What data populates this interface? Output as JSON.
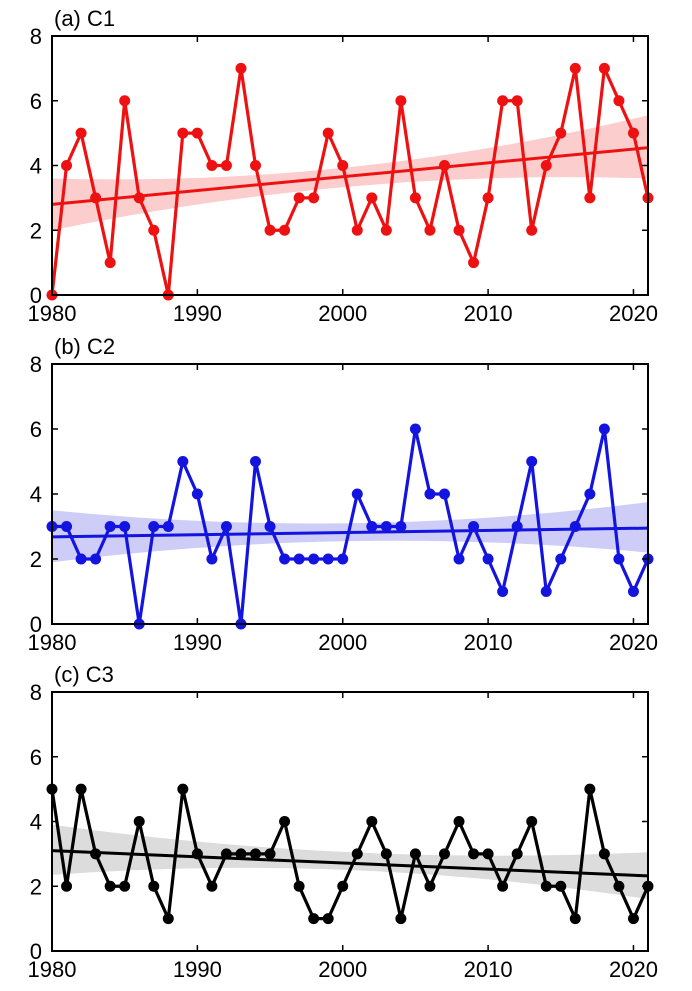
{
  "chart_data": [
    {
      "type": "line",
      "title": "(a) C1",
      "color": "#ee1111",
      "band_color": "#fbcdcd",
      "xlim": [
        1980,
        2021
      ],
      "ylim": [
        0,
        8
      ],
      "xticks": [
        1980,
        1990,
        2000,
        2010,
        2020
      ],
      "yticks": [
        0,
        2,
        4,
        6,
        8
      ],
      "x": [
        1980,
        1981,
        1982,
        1983,
        1984,
        1985,
        1986,
        1987,
        1988,
        1989,
        1990,
        1991,
        1992,
        1993,
        1994,
        1995,
        1996,
        1997,
        1998,
        1999,
        2000,
        2001,
        2002,
        2003,
        2004,
        2005,
        2006,
        2007,
        2008,
        2009,
        2010,
        2011,
        2012,
        2013,
        2014,
        2015,
        2016,
        2017,
        2018,
        2019,
        2020,
        2021
      ],
      "values": [
        0,
        4,
        5,
        3,
        1,
        6,
        3,
        2,
        0,
        5,
        5,
        4,
        4,
        7,
        4,
        2,
        2,
        3,
        3,
        5,
        4,
        2,
        3,
        2,
        6,
        3,
        2,
        4,
        2,
        1,
        3,
        6,
        6,
        2,
        4,
        5,
        7,
        3,
        7,
        6,
        5,
        3
      ],
      "trend": {
        "start": 2.8,
        "end": 4.55
      },
      "band": {
        "start_low": 2.0,
        "start_high": 3.6,
        "mid_low": 3.35,
        "mid_high": 3.95,
        "end_low": 3.6,
        "end_high": 5.55
      }
    },
    {
      "type": "line",
      "title": "(b) C2",
      "color": "#1414e0",
      "band_color": "#cdcdf8",
      "xlim": [
        1980,
        2021
      ],
      "ylim": [
        0,
        8
      ],
      "xticks": [
        1980,
        1990,
        2000,
        2010,
        2020
      ],
      "yticks": [
        0,
        2,
        4,
        6,
        8
      ],
      "x": [
        1980,
        1981,
        1982,
        1983,
        1984,
        1985,
        1986,
        1987,
        1988,
        1989,
        1990,
        1991,
        1992,
        1993,
        1994,
        1995,
        1996,
        1997,
        1998,
        1999,
        2000,
        2001,
        2002,
        2003,
        2004,
        2005,
        2006,
        2007,
        2008,
        2009,
        2010,
        2011,
        2012,
        2013,
        2014,
        2015,
        2016,
        2017,
        2018,
        2019,
        2020,
        2021
      ],
      "values": [
        3,
        3,
        2,
        2,
        3,
        3,
        0,
        3,
        3,
        5,
        4,
        2,
        3,
        0,
        5,
        3,
        2,
        2,
        2,
        2,
        2,
        4,
        3,
        3,
        3,
        6,
        4,
        4,
        2,
        3,
        2,
        1,
        3,
        5,
        1,
        2,
        3,
        4,
        6,
        2,
        1,
        2
      ],
      "trend": {
        "start": 2.68,
        "end": 2.95
      },
      "band": {
        "start_low": 1.9,
        "start_high": 3.5,
        "mid_low": 2.55,
        "mid_high": 3.1,
        "end_low": 2.2,
        "end_high": 3.75
      }
    },
    {
      "type": "line",
      "title": "(c) C3",
      "color": "#000000",
      "band_color": "#dcdcdc",
      "xlim": [
        1980,
        2021
      ],
      "ylim": [
        0,
        8
      ],
      "xticks": [
        1980,
        1990,
        2000,
        2010,
        2020
      ],
      "yticks": [
        0,
        2,
        4,
        6,
        8
      ],
      "x": [
        1980,
        1981,
        1982,
        1983,
        1984,
        1985,
        1986,
        1987,
        1988,
        1989,
        1990,
        1991,
        1992,
        1993,
        1994,
        1995,
        1996,
        1997,
        1998,
        1999,
        2000,
        2001,
        2002,
        2003,
        2004,
        2005,
        2006,
        2007,
        2008,
        2009,
        2010,
        2011,
        2012,
        2013,
        2014,
        2015,
        2016,
        2017,
        2018,
        2019,
        2020,
        2021
      ],
      "values": [
        5,
        2,
        5,
        3,
        2,
        2,
        4,
        2,
        1,
        5,
        3,
        2,
        3,
        3,
        3,
        3,
        4,
        2,
        1,
        1,
        2,
        3,
        4,
        3,
        1,
        3,
        2,
        3,
        4,
        3,
        3,
        2,
        3,
        4,
        2,
        2,
        1,
        5,
        3,
        2,
        1,
        2
      ],
      "trend": {
        "start": 3.1,
        "end": 2.32
      },
      "band": {
        "start_low": 2.35,
        "start_high": 3.9,
        "mid_low": 2.5,
        "mid_high": 3.05,
        "end_low": 1.6,
        "end_high": 3.05
      }
    }
  ]
}
